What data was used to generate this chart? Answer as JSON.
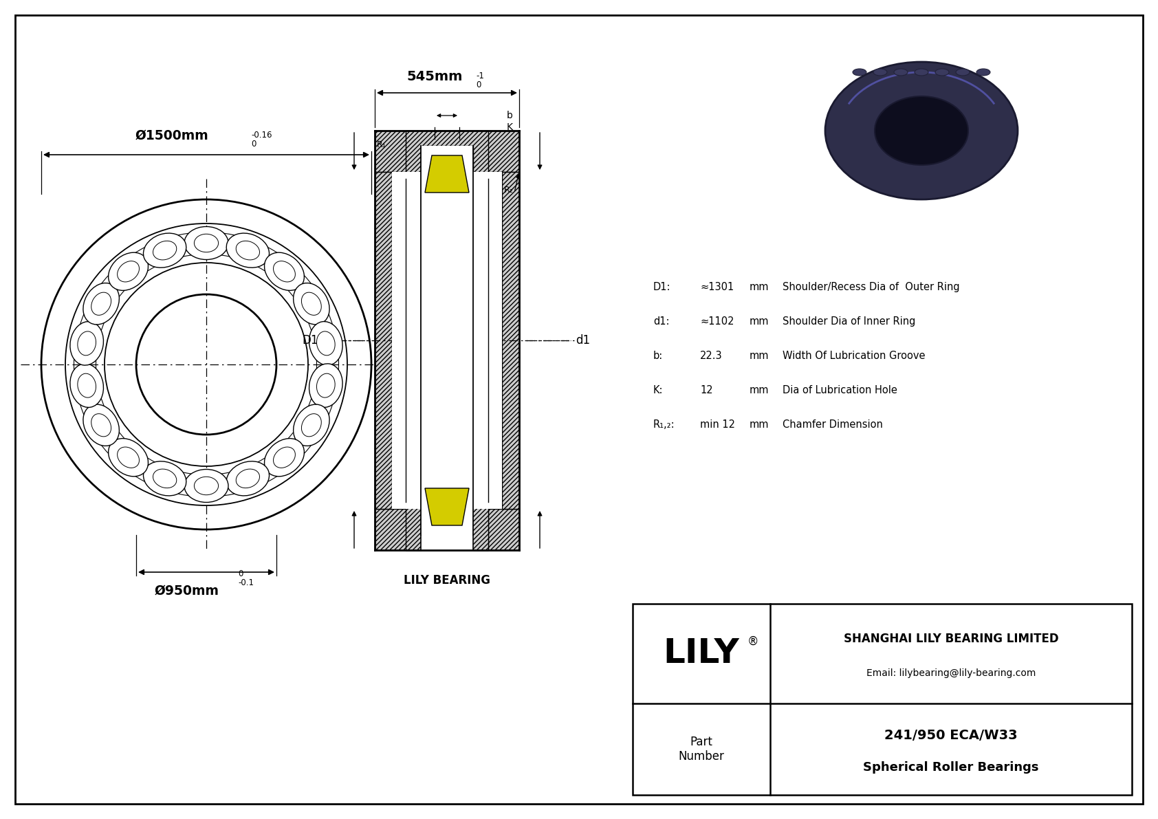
{
  "bg_color": "#ffffff",
  "lc": "#000000",
  "yellow": "#d4cc00",
  "hatch_fc": "#cccccc",
  "outer_diam_text": "Ø1500mm",
  "outer_tol_hi": "0",
  "outer_tol_lo": "-0.16",
  "inner_diam_text": "Ø950mm",
  "inner_tol_hi": "0",
  "inner_tol_lo": "-0.1",
  "width_text": "545mm",
  "width_tol_hi": "0",
  "width_tol_lo": "-1",
  "b_label": "b",
  "K_label": "K",
  "R1_label": "R₁",
  "R2_label": "R₂",
  "D1_label": "D1",
  "d1_label": "d1",
  "lily_bearing_label": "LILY BEARING",
  "specs": [
    {
      "key": "D1:",
      "val": "≈1301",
      "unit": "mm",
      "desc": "Shoulder/Recess Dia of  Outer Ring"
    },
    {
      "key": "d1:",
      "val": "≈1102",
      "unit": "mm",
      "desc": "Shoulder Dia of Inner Ring"
    },
    {
      "key": "b:",
      "val": "22.3",
      "unit": "mm",
      "desc": "Width Of Lubrication Groove"
    },
    {
      "key": "K:",
      "val": "12",
      "unit": "mm",
      "desc": "Dia of Lubrication Hole"
    },
    {
      "key": "R₁,₂:",
      "val": "min 12",
      "unit": "mm",
      "desc": "Chamfer Dimension"
    }
  ],
  "company": "SHANGHAI LILY BEARING LIMITED",
  "email": "Email: lilybearing@lily-bearing.com",
  "lily_logo": "LILY",
  "part_label": "Part\nNumber",
  "part_number": "241/950 ECA/W33",
  "part_type": "Spherical Roller Bearings"
}
